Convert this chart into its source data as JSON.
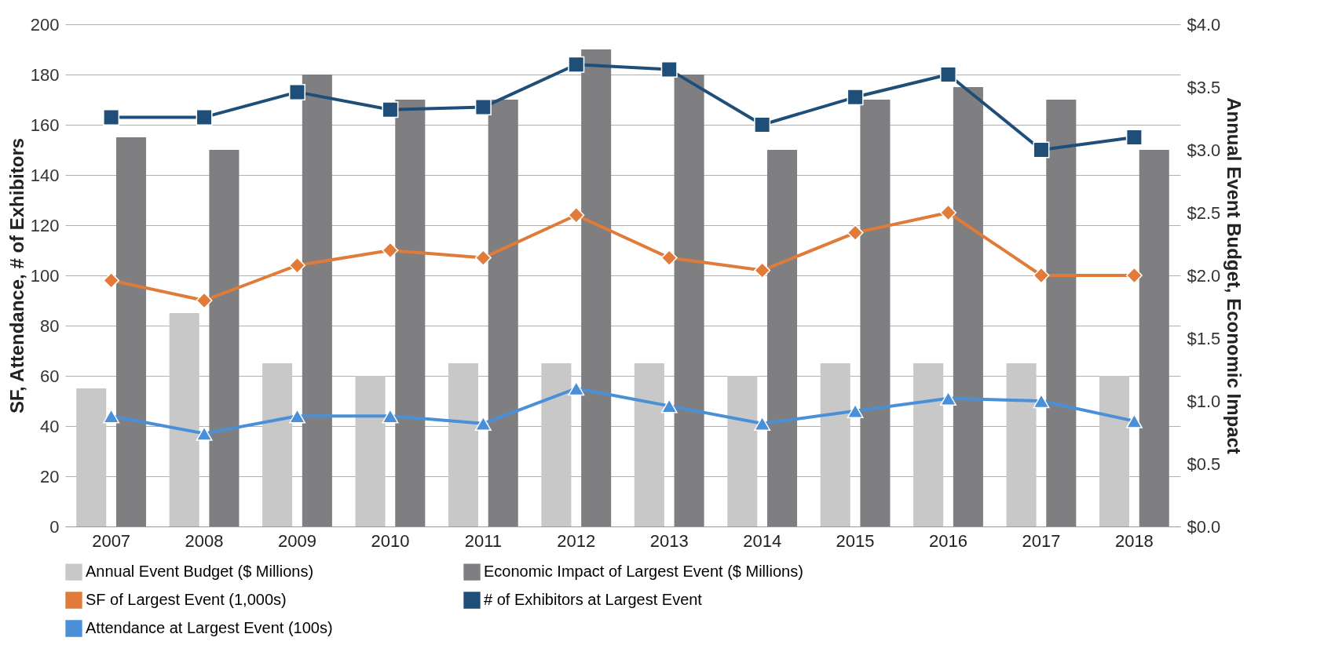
{
  "chart_data": {
    "type": "bar",
    "categories": [
      "2007",
      "2008",
      "2009",
      "2010",
      "2011",
      "2012",
      "2013",
      "2014",
      "2015",
      "2016",
      "2017",
      "2018"
    ],
    "ylabel": "SF, Attendance, # of Exhibitors",
    "y2label": "Annual Event Budget, Economic Impact",
    "ylim": [
      0,
      200
    ],
    "yticks": [
      0,
      20,
      40,
      60,
      80,
      100,
      120,
      140,
      160,
      180,
      200
    ],
    "y2lim": [
      0,
      4
    ],
    "y2ticks": [
      {
        "value": 0,
        "label": "$0.0"
      },
      {
        "value": 0.5,
        "label": "$0.5"
      },
      {
        "value": 1,
        "label": "$1.0"
      },
      {
        "value": 1.5,
        "label": "$1.5"
      },
      {
        "value": 2,
        "label": "$2.0"
      },
      {
        "value": 2.5,
        "label": "$2.5"
      },
      {
        "value": 3,
        "label": "$3.0"
      },
      {
        "value": 3.5,
        "label": "$3.5"
      },
      {
        "value": 4,
        "label": "$4.0"
      }
    ],
    "grid": "y",
    "legend": "bottom",
    "series": [
      {
        "name": "Annual Event Budget ($ Millions)",
        "axis": "y2",
        "color": "#c8c8c8",
        "values": [
          1.1,
          1.7,
          1.3,
          1.2,
          1.3,
          1.3,
          1.3,
          1.2,
          1.3,
          1.3,
          1.3,
          1.2
        ]
      },
      {
        "name": "Economic Impact of Largest Event ($ Millions)",
        "axis": "y2",
        "color": "#7f7f82",
        "values": [
          3.1,
          3.0,
          3.6,
          3.4,
          3.4,
          3.8,
          3.6,
          3.0,
          3.4,
          3.5,
          3.4,
          3.0
        ]
      },
      {
        "name": "SF of Largest Event (1,000s)",
        "type": "line",
        "marker": "diamond",
        "color": "#e07b39",
        "values": [
          98,
          90,
          104,
          110,
          107,
          124,
          107,
          102,
          117,
          125,
          100,
          100
        ]
      },
      {
        "name": "# of Exhibitors at Largest Event",
        "type": "line",
        "marker": "square",
        "color": "#1f4e79",
        "values": [
          163,
          163,
          173,
          166,
          167,
          184,
          182,
          160,
          171,
          180,
          150,
          155
        ]
      },
      {
        "name": "Attendance at Largest Event (100s)",
        "type": "line",
        "marker": "triangle",
        "color": "#4a90d9",
        "values": [
          44,
          37,
          44,
          44,
          41,
          55,
          48,
          41,
          46,
          51,
          50,
          42
        ]
      }
    ]
  }
}
